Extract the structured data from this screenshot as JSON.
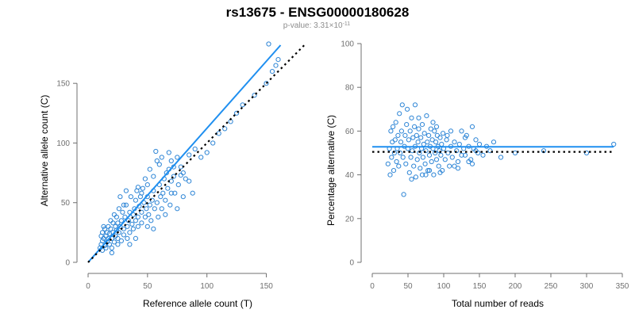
{
  "header": {
    "title": "rs13675 - ENSG00000180628",
    "pvalue_prefix": "p-value: 3.31×10",
    "pvalue_exponent": "-11"
  },
  "colors": {
    "points": "#2f86d6",
    "fit_line": "#1f8ff0",
    "reference_line": "#000000",
    "axis": "#707070",
    "tick_text": "#707070"
  },
  "chart_data": [
    {
      "type": "scatter",
      "title": "",
      "xlabel": "Reference allele count (T)",
      "ylabel": "Alternative allele count (C)",
      "xlim": [
        0,
        165
      ],
      "ylim": [
        0,
        182
      ],
      "xticks": [
        0,
        50,
        100,
        150
      ],
      "yticks": [
        0,
        50,
        100,
        150
      ],
      "grid": false,
      "lines": [
        {
          "name": "fit",
          "style": "solid",
          "from": [
            0,
            0
          ],
          "to": [
            162,
            182
          ]
        },
        {
          "name": "reference",
          "style": "dotted",
          "from": [
            0,
            0
          ],
          "to": [
            182,
            182
          ]
        }
      ],
      "points": [
        [
          10,
          12
        ],
        [
          12,
          10
        ],
        [
          11,
          15
        ],
        [
          12,
          18
        ],
        [
          13,
          20
        ],
        [
          11,
          22
        ],
        [
          12,
          25
        ],
        [
          14,
          14
        ],
        [
          14,
          28
        ],
        [
          13,
          30
        ],
        [
          15,
          12
        ],
        [
          15,
          22
        ],
        [
          16,
          17
        ],
        [
          16,
          25
        ],
        [
          17,
          20
        ],
        [
          17,
          30
        ],
        [
          18,
          15
        ],
        [
          18,
          24
        ],
        [
          19,
          28
        ],
        [
          19,
          35
        ],
        [
          20,
          12
        ],
        [
          20,
          20
        ],
        [
          21,
          25
        ],
        [
          21,
          33
        ],
        [
          22,
          17
        ],
        [
          22,
          40
        ],
        [
          23,
          22
        ],
        [
          23,
          30
        ],
        [
          24,
          27
        ],
        [
          24,
          38
        ],
        [
          25,
          20
        ],
        [
          25,
          33
        ],
        [
          26,
          45
        ],
        [
          26,
          25
        ],
        [
          27,
          30
        ],
        [
          28,
          18
        ],
        [
          28,
          35
        ],
        [
          29,
          42
        ],
        [
          30,
          23
        ],
        [
          30,
          28
        ],
        [
          31,
          38
        ],
        [
          32,
          48
        ],
        [
          33,
          20
        ],
        [
          33,
          30
        ],
        [
          34,
          35
        ],
        [
          35,
          25
        ],
        [
          35,
          42
        ],
        [
          36,
          55
        ],
        [
          37,
          32
        ],
        [
          38,
          40
        ],
        [
          38,
          28
        ],
        [
          39,
          45
        ],
        [
          40,
          35
        ],
        [
          40,
          52
        ],
        [
          41,
          60
        ],
        [
          42,
          30
        ],
        [
          42,
          38
        ],
        [
          43,
          47
        ],
        [
          44,
          55
        ],
        [
          45,
          33
        ],
        [
          45,
          42
        ],
        [
          46,
          62
        ],
        [
          47,
          50
        ],
        [
          48,
          38
        ],
        [
          49,
          45
        ],
        [
          50,
          55
        ],
        [
          50,
          30
        ],
        [
          51,
          40
        ],
        [
          52,
          48
        ],
        [
          53,
          35
        ],
        [
          54,
          52
        ],
        [
          55,
          60
        ],
        [
          55,
          72
        ],
        [
          56,
          45
        ],
        [
          57,
          93
        ],
        [
          58,
          50
        ],
        [
          59,
          38
        ],
        [
          60,
          65
        ],
        [
          61,
          55
        ],
        [
          62,
          45
        ],
        [
          63,
          58
        ],
        [
          64,
          70
        ],
        [
          65,
          52
        ],
        [
          66,
          75
        ],
        [
          67,
          62
        ],
        [
          68,
          78
        ],
        [
          69,
          48
        ],
        [
          70,
          68
        ],
        [
          70,
          85
        ],
        [
          72,
          72
        ],
        [
          73,
          58
        ],
        [
          75,
          88
        ],
        [
          76,
          65
        ],
        [
          78,
          80
        ],
        [
          80,
          75
        ],
        [
          82,
          70
        ],
        [
          85,
          90
        ],
        [
          88,
          58
        ],
        [
          90,
          95
        ],
        [
          95,
          88
        ],
        [
          100,
          92
        ],
        [
          105,
          100
        ],
        [
          110,
          108
        ],
        [
          115,
          112
        ],
        [
          120,
          118
        ],
        [
          125,
          125
        ],
        [
          130,
          132
        ],
        [
          140,
          140
        ],
        [
          150,
          150
        ],
        [
          152,
          183
        ],
        [
          155,
          160
        ],
        [
          158,
          165
        ],
        [
          160,
          170
        ],
        [
          20,
          8
        ],
        [
          25,
          15
        ],
        [
          30,
          48
        ],
        [
          35,
          15
        ],
        [
          40,
          20
        ],
        [
          45,
          58
        ],
        [
          50,
          65
        ],
        [
          55,
          28
        ],
        [
          60,
          82
        ],
        [
          65,
          40
        ],
        [
          70,
          58
        ],
        [
          75,
          45
        ],
        [
          80,
          55
        ],
        [
          27,
          55
        ],
        [
          32,
          60
        ],
        [
          42,
          63
        ],
        [
          48,
          70
        ],
        [
          52,
          78
        ],
        [
          58,
          85
        ],
        [
          62,
          88
        ],
        [
          68,
          92
        ],
        [
          72,
          80
        ],
        [
          78,
          73
        ],
        [
          85,
          68
        ]
      ]
    },
    {
      "type": "scatter",
      "title": "",
      "xlabel": "Total number of reads",
      "ylabel": "Percentage alternative (C)",
      "xlim": [
        0,
        350
      ],
      "ylim": [
        0,
        100
      ],
      "xticks": [
        0,
        50,
        100,
        150,
        200,
        250,
        300,
        350
      ],
      "yticks": [
        0,
        20,
        40,
        60,
        80,
        100
      ],
      "grid": false,
      "lines": [
        {
          "name": "fit",
          "style": "solid",
          "from": [
            0,
            52.8
          ],
          "to": [
            338,
            52.8
          ]
        },
        {
          "name": "reference",
          "style": "dotted",
          "from": [
            0,
            50.5
          ],
          "to": [
            338,
            50.5
          ]
        }
      ],
      "points": [
        [
          22,
          45
        ],
        [
          24,
          52
        ],
        [
          25,
          40
        ],
        [
          26,
          60
        ],
        [
          27,
          48
        ],
        [
          28,
          55
        ],
        [
          29,
          62
        ],
        [
          30,
          42
        ],
        [
          31,
          50
        ],
        [
          32,
          56
        ],
        [
          33,
          64
        ],
        [
          34,
          46
        ],
        [
          35,
          52
        ],
        [
          36,
          58
        ],
        [
          37,
          44
        ],
        [
          38,
          68
        ],
        [
          39,
          50
        ],
        [
          40,
          55
        ],
        [
          41,
          60
        ],
        [
          42,
          72
        ],
        [
          43,
          48
        ],
        [
          44,
          31
        ],
        [
          45,
          53
        ],
        [
          46,
          58
        ],
        [
          47,
          45
        ],
        [
          48,
          63
        ],
        [
          49,
          70
        ],
        [
          50,
          52
        ],
        [
          51,
          56
        ],
        [
          52,
          41
        ],
        [
          53,
          60
        ],
        [
          54,
          48
        ],
        [
          55,
          66
        ],
        [
          56,
          51
        ],
        [
          57,
          57
        ],
        [
          58,
          44
        ],
        [
          59,
          62
        ],
        [
          60,
          53
        ],
        [
          61,
          39
        ],
        [
          62,
          58
        ],
        [
          63,
          47
        ],
        [
          64,
          55
        ],
        [
          65,
          61
        ],
        [
          66,
          50
        ],
        [
          67,
          43
        ],
        [
          68,
          57
        ],
        [
          69,
          52
        ],
        [
          70,
          63
        ],
        [
          71,
          48
        ],
        [
          72,
          54
        ],
        [
          73,
          59
        ],
        [
          74,
          45
        ],
        [
          75,
          51
        ],
        [
          76,
          67
        ],
        [
          77,
          55
        ],
        [
          78,
          42
        ],
        [
          79,
          58
        ],
        [
          80,
          49
        ],
        [
          81,
          53
        ],
        [
          82,
          61
        ],
        [
          83,
          46
        ],
        [
          84,
          56
        ],
        [
          85,
          52
        ],
        [
          86,
          40
        ],
        [
          87,
          60
        ],
        [
          88,
          50
        ],
        [
          89,
          55
        ],
        [
          90,
          47
        ],
        [
          91,
          58
        ],
        [
          92,
          53
        ],
        [
          93,
          44
        ],
        [
          94,
          51
        ],
        [
          95,
          57
        ],
        [
          96,
          49
        ],
        [
          97,
          54
        ],
        [
          98,
          42
        ],
        [
          99,
          59
        ],
        [
          100,
          52
        ],
        [
          102,
          47
        ],
        [
          104,
          56
        ],
        [
          106,
          50
        ],
        [
          108,
          44
        ],
        [
          110,
          53
        ],
        [
          112,
          48
        ],
        [
          115,
          55
        ],
        [
          118,
          51
        ],
        [
          120,
          46
        ],
        [
          122,
          54
        ],
        [
          125,
          60
        ],
        [
          128,
          52
        ],
        [
          130,
          49
        ],
        [
          132,
          58
        ],
        [
          135,
          53
        ],
        [
          138,
          47
        ],
        [
          140,
          62
        ],
        [
          142,
          52
        ],
        [
          145,
          56
        ],
        [
          148,
          50
        ],
        [
          150,
          54
        ],
        [
          155,
          49
        ],
        [
          160,
          53
        ],
        [
          165,
          51
        ],
        [
          170,
          55
        ],
        [
          180,
          48
        ],
        [
          200,
          50
        ],
        [
          240,
          51
        ],
        [
          300,
          50
        ],
        [
          338,
          54
        ],
        [
          60,
          72
        ],
        [
          70,
          40
        ],
        [
          80,
          42
        ],
        [
          90,
          62
        ],
        [
          110,
          60
        ],
        [
          120,
          43
        ],
        [
          130,
          57
        ],
        [
          140,
          45
        ],
        [
          55,
          38
        ],
        [
          65,
          66
        ],
        [
          75,
          40
        ],
        [
          85,
          64
        ],
        [
          95,
          41
        ],
        [
          105,
          58
        ],
        [
          115,
          44
        ],
        [
          125,
          49
        ],
        [
          135,
          46
        ],
        [
          145,
          51
        ]
      ]
    }
  ]
}
